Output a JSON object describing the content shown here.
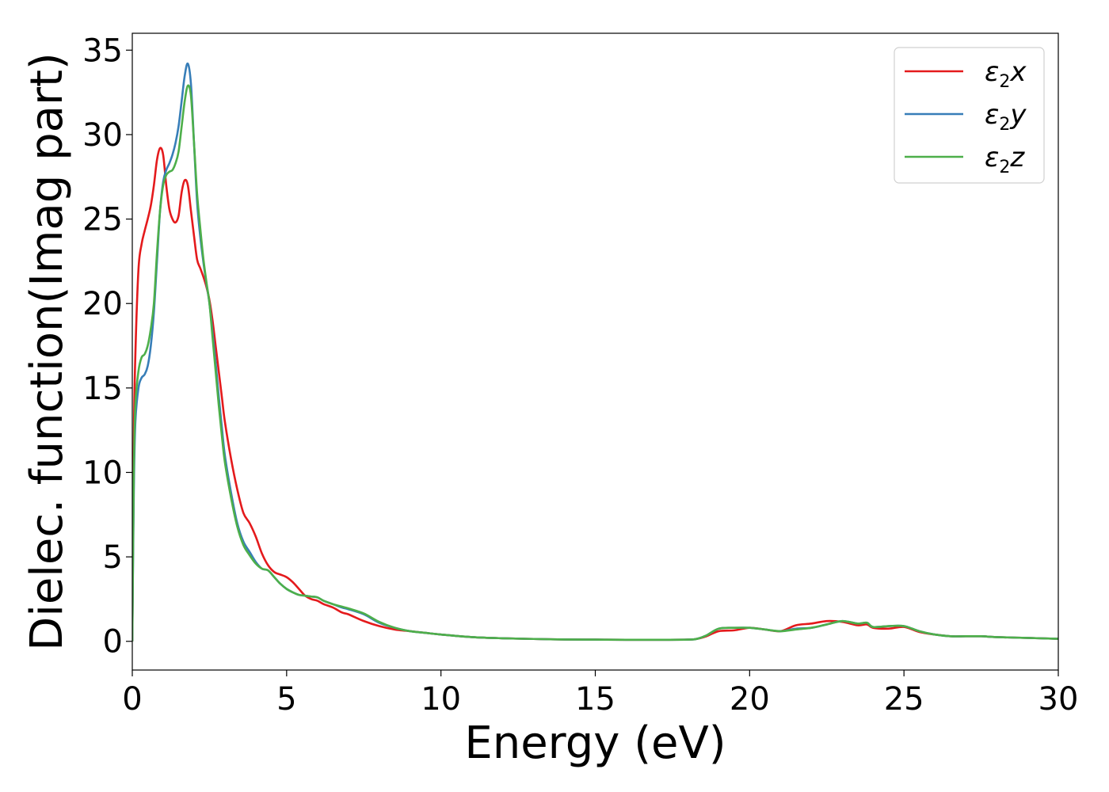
{
  "chart_data": {
    "type": "line",
    "title": "",
    "xlabel": "Energy (eV)",
    "ylabel": "Dielec. function(Imag part)",
    "xlim": [
      0,
      30
    ],
    "ylim": [
      -1.7,
      36
    ],
    "xticks": [
      0,
      5,
      10,
      15,
      20,
      25,
      30
    ],
    "yticks": [
      0,
      5,
      10,
      15,
      20,
      25,
      30,
      35
    ],
    "grid": false,
    "legend": "top-right",
    "series": [
      {
        "name": "ε2x",
        "name_base": "ε",
        "name_sub": "2",
        "name_var": "x",
        "color": "#e41a1c",
        "x": [
          0,
          0.05,
          0.1,
          0.2,
          0.3,
          0.4,
          0.5,
          0.6,
          0.7,
          0.8,
          0.9,
          1.0,
          1.1,
          1.2,
          1.3,
          1.4,
          1.5,
          1.6,
          1.7,
          1.8,
          1.9,
          2.0,
          2.1,
          2.2,
          2.3,
          2.4,
          2.5,
          2.6,
          2.7,
          2.8,
          2.9,
          3.0,
          3.2,
          3.4,
          3.6,
          3.8,
          4.0,
          4.2,
          4.4,
          4.6,
          4.8,
          5.0,
          5.2,
          5.4,
          5.6,
          5.8,
          6.0,
          6.2,
          6.5,
          6.8,
          7.0,
          7.5,
          8.0,
          8.5,
          9.0,
          9.5,
          10,
          11,
          12,
          13,
          14,
          15,
          16,
          17,
          18,
          18.3,
          18.6,
          19.0,
          19.5,
          20.0,
          20.5,
          21.0,
          21.5,
          22.0,
          22.5,
          23.0,
          23.5,
          23.8,
          24.0,
          24.5,
          25.0,
          25.5,
          26.0,
          26.5,
          27.0,
          27.5,
          28,
          29,
          30
        ],
        "y": [
          0,
          12,
          17,
          22,
          23.5,
          24.3,
          25.0,
          25.8,
          27.0,
          28.5,
          29.2,
          28.8,
          27.0,
          25.6,
          25.0,
          24.8,
          25.2,
          26.6,
          27.3,
          27.0,
          25.5,
          24.0,
          22.6,
          22.1,
          21.6,
          21.0,
          20.2,
          19.0,
          17.5,
          16.0,
          14.5,
          13.0,
          10.8,
          9.0,
          7.6,
          7.0,
          6.2,
          5.2,
          4.5,
          4.1,
          3.95,
          3.8,
          3.5,
          3.1,
          2.7,
          2.5,
          2.4,
          2.2,
          2.0,
          1.7,
          1.6,
          1.2,
          0.9,
          0.7,
          0.6,
          0.5,
          0.4,
          0.25,
          0.18,
          0.14,
          0.11,
          0.1,
          0.09,
          0.09,
          0.1,
          0.15,
          0.3,
          0.6,
          0.65,
          0.8,
          0.7,
          0.6,
          0.95,
          1.05,
          1.2,
          1.15,
          0.95,
          1.0,
          0.8,
          0.75,
          0.85,
          0.55,
          0.4,
          0.3,
          0.3,
          0.3,
          0.25,
          0.2,
          0.15
        ]
      },
      {
        "name": "ε2y",
        "name_base": "ε",
        "name_sub": "2",
        "name_var": "y",
        "color": "#377eb8",
        "x": [
          0,
          0.05,
          0.1,
          0.2,
          0.3,
          0.4,
          0.5,
          0.6,
          0.7,
          0.8,
          0.9,
          1.0,
          1.1,
          1.2,
          1.3,
          1.4,
          1.5,
          1.6,
          1.7,
          1.8,
          1.9,
          2.0,
          2.1,
          2.2,
          2.3,
          2.4,
          2.5,
          2.6,
          2.7,
          2.8,
          2.9,
          3.0,
          3.2,
          3.4,
          3.6,
          3.8,
          4.0,
          4.2,
          4.4,
          4.6,
          4.8,
          5.0,
          5.2,
          5.4,
          5.6,
          5.8,
          6.0,
          6.2,
          6.5,
          6.8,
          7.0,
          7.5,
          8.0,
          8.5,
          9.0,
          9.5,
          10,
          11,
          12,
          13,
          14,
          15,
          16,
          17,
          18,
          18.3,
          18.6,
          19.0,
          19.5,
          20.0,
          20.5,
          21.0,
          21.5,
          22.0,
          22.5,
          23.0,
          23.5,
          23.8,
          24.0,
          24.5,
          25.0,
          25.5,
          26.0,
          26.5,
          27.0,
          27.5,
          28,
          29,
          30
        ],
        "y": [
          0,
          9,
          13,
          15.0,
          15.6,
          15.8,
          16.3,
          17.5,
          19.5,
          22.5,
          25.5,
          27.2,
          27.9,
          28.3,
          28.8,
          29.5,
          30.5,
          32.0,
          33.5,
          34.2,
          33.0,
          29.5,
          26.0,
          24.0,
          22.5,
          21.2,
          20.0,
          18.3,
          16.5,
          14.5,
          12.7,
          11.0,
          8.8,
          7.0,
          5.9,
          5.3,
          4.7,
          4.3,
          4.2,
          3.8,
          3.4,
          3.1,
          2.9,
          2.75,
          2.7,
          2.65,
          2.6,
          2.4,
          2.2,
          2.0,
          1.9,
          1.6,
          1.1,
          0.8,
          0.6,
          0.5,
          0.4,
          0.25,
          0.18,
          0.14,
          0.11,
          0.1,
          0.09,
          0.09,
          0.1,
          0.15,
          0.35,
          0.75,
          0.8,
          0.8,
          0.7,
          0.6,
          0.75,
          0.8,
          1.0,
          1.2,
          1.05,
          1.1,
          0.85,
          0.9,
          0.9,
          0.6,
          0.4,
          0.3,
          0.3,
          0.3,
          0.25,
          0.2,
          0.15
        ]
      },
      {
        "name": "ε2z",
        "name_base": "ε",
        "name_sub": "2",
        "name_var": "z",
        "color": "#4daf4a",
        "x": [
          0,
          0.05,
          0.1,
          0.2,
          0.3,
          0.4,
          0.5,
          0.6,
          0.7,
          0.8,
          0.9,
          1.0,
          1.1,
          1.2,
          1.3,
          1.4,
          1.5,
          1.6,
          1.7,
          1.8,
          1.9,
          2.0,
          2.1,
          2.2,
          2.3,
          2.4,
          2.5,
          2.6,
          2.7,
          2.8,
          2.9,
          3.0,
          3.2,
          3.4,
          3.6,
          3.8,
          4.0,
          4.2,
          4.4,
          4.6,
          4.8,
          5.0,
          5.2,
          5.4,
          5.6,
          5.8,
          6.0,
          6.2,
          6.5,
          6.8,
          7.0,
          7.5,
          8.0,
          8.5,
          9.0,
          9.5,
          10,
          11,
          12,
          13,
          14,
          15,
          16,
          17,
          18,
          18.3,
          18.6,
          19.0,
          19.5,
          20.0,
          20.5,
          21.0,
          21.5,
          22.0,
          22.5,
          23.0,
          23.5,
          23.8,
          24.0,
          24.5,
          25.0,
          25.5,
          26.0,
          26.5,
          27.0,
          27.5,
          28,
          29,
          30
        ],
        "y": [
          0,
          10,
          14,
          16.0,
          16.8,
          17.0,
          17.5,
          18.5,
          20.0,
          23.0,
          25.5,
          27.0,
          27.6,
          27.8,
          27.9,
          28.3,
          29.0,
          30.5,
          32.0,
          32.9,
          32.3,
          29.5,
          26.5,
          24.5,
          22.7,
          21.3,
          20.0,
          18.0,
          16.0,
          14.0,
          12.2,
          10.6,
          8.5,
          6.8,
          5.7,
          5.1,
          4.6,
          4.3,
          4.2,
          3.8,
          3.4,
          3.1,
          2.9,
          2.75,
          2.7,
          2.65,
          2.6,
          2.4,
          2.2,
          2.05,
          1.95,
          1.65,
          1.15,
          0.8,
          0.6,
          0.5,
          0.4,
          0.25,
          0.18,
          0.14,
          0.11,
          0.1,
          0.09,
          0.09,
          0.1,
          0.15,
          0.35,
          0.75,
          0.8,
          0.8,
          0.7,
          0.6,
          0.7,
          0.8,
          1.0,
          1.2,
          1.05,
          1.1,
          0.85,
          0.9,
          0.9,
          0.6,
          0.4,
          0.3,
          0.3,
          0.3,
          0.25,
          0.2,
          0.15
        ]
      }
    ]
  }
}
